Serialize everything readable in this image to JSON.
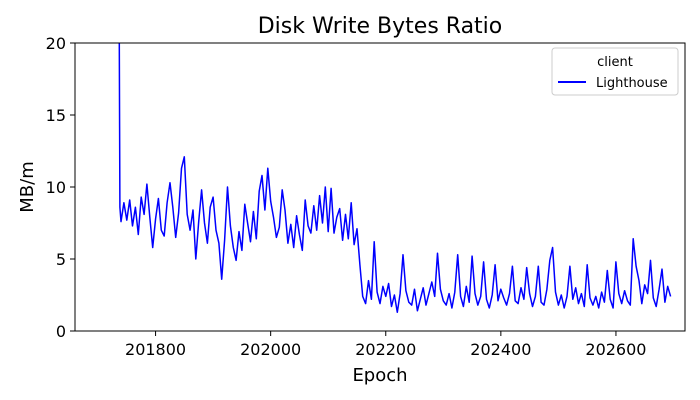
{
  "chart_data": {
    "type": "line",
    "title": "Disk Write Bytes Ratio",
    "xlabel": "Epoch",
    "ylabel": "MB/m",
    "xlim": [
      201660,
      202720
    ],
    "ylim": [
      0,
      20
    ],
    "xticks": [
      201800,
      202000,
      202200,
      202400,
      202600
    ],
    "yticks": [
      0,
      5,
      10,
      15,
      20
    ],
    "grid": false,
    "legend": {
      "title": "client",
      "placement": "top-right"
    },
    "series": [
      {
        "name": "Lighthouse",
        "color": "#0000ff",
        "points": [
          [
            201737,
            20.0
          ],
          [
            201738,
            8.6
          ],
          [
            201740,
            7.6
          ],
          [
            201745,
            8.9
          ],
          [
            201750,
            7.7
          ],
          [
            201755,
            9.1
          ],
          [
            201760,
            7.3
          ],
          [
            201765,
            8.6
          ],
          [
            201770,
            6.7
          ],
          [
            201775,
            9.3
          ],
          [
            201780,
            8.1
          ],
          [
            201785,
            10.2
          ],
          [
            201790,
            7.9
          ],
          [
            201795,
            5.8
          ],
          [
            201800,
            7.8
          ],
          [
            201805,
            9.2
          ],
          [
            201810,
            7.0
          ],
          [
            201815,
            6.6
          ],
          [
            201820,
            8.9
          ],
          [
            201825,
            10.3
          ],
          [
            201830,
            8.6
          ],
          [
            201835,
            6.5
          ],
          [
            201840,
            8.2
          ],
          [
            201845,
            11.3
          ],
          [
            201850,
            12.1
          ],
          [
            201855,
            8.1
          ],
          [
            201860,
            7.0
          ],
          [
            201865,
            8.4
          ],
          [
            201870,
            5.0
          ],
          [
            201875,
            7.6
          ],
          [
            201880,
            9.8
          ],
          [
            201885,
            7.5
          ],
          [
            201890,
            6.1
          ],
          [
            201895,
            8.6
          ],
          [
            201900,
            9.3
          ],
          [
            201905,
            7.0
          ],
          [
            201910,
            6.1
          ],
          [
            201915,
            3.6
          ],
          [
            201920,
            6.3
          ],
          [
            201925,
            10.0
          ],
          [
            201930,
            7.3
          ],
          [
            201935,
            5.8
          ],
          [
            201940,
            4.9
          ],
          [
            201945,
            6.9
          ],
          [
            201950,
            5.6
          ],
          [
            201955,
            8.8
          ],
          [
            201960,
            7.5
          ],
          [
            201965,
            6.2
          ],
          [
            201970,
            8.3
          ],
          [
            201975,
            6.4
          ],
          [
            201980,
            9.7
          ],
          [
            201985,
            10.8
          ],
          [
            201990,
            8.4
          ],
          [
            201995,
            11.3
          ],
          [
            202000,
            9.0
          ],
          [
            202005,
            7.9
          ],
          [
            202010,
            6.5
          ],
          [
            202015,
            7.2
          ],
          [
            202020,
            9.8
          ],
          [
            202025,
            8.4
          ],
          [
            202030,
            6.1
          ],
          [
            202035,
            7.4
          ],
          [
            202040,
            5.8
          ],
          [
            202045,
            8.0
          ],
          [
            202050,
            6.7
          ],
          [
            202055,
            5.6
          ],
          [
            202060,
            9.1
          ],
          [
            202065,
            7.3
          ],
          [
            202070,
            6.8
          ],
          [
            202075,
            8.7
          ],
          [
            202080,
            7.0
          ],
          [
            202085,
            9.4
          ],
          [
            202090,
            7.5
          ],
          [
            202095,
            10.0
          ],
          [
            202100,
            6.9
          ],
          [
            202105,
            9.9
          ],
          [
            202110,
            6.8
          ],
          [
            202115,
            7.9
          ],
          [
            202120,
            8.5
          ],
          [
            202125,
            6.3
          ],
          [
            202130,
            8.1
          ],
          [
            202135,
            6.4
          ],
          [
            202140,
            8.9
          ],
          [
            202145,
            6.0
          ],
          [
            202150,
            7.1
          ],
          [
            202155,
            4.6
          ],
          [
            202160,
            2.4
          ],
          [
            202165,
            1.9
          ],
          [
            202170,
            3.5
          ],
          [
            202175,
            2.2
          ],
          [
            202180,
            6.2
          ],
          [
            202185,
            2.7
          ],
          [
            202190,
            1.9
          ],
          [
            202195,
            3.1
          ],
          [
            202200,
            2.4
          ],
          [
            202205,
            3.3
          ],
          [
            202210,
            1.7
          ],
          [
            202215,
            2.5
          ],
          [
            202220,
            1.3
          ],
          [
            202225,
            2.6
          ],
          [
            202230,
            5.3
          ],
          [
            202235,
            2.8
          ],
          [
            202240,
            2.0
          ],
          [
            202245,
            1.8
          ],
          [
            202250,
            2.9
          ],
          [
            202255,
            1.4
          ],
          [
            202260,
            2.2
          ],
          [
            202265,
            3.0
          ],
          [
            202270,
            1.8
          ],
          [
            202275,
            2.6
          ],
          [
            202280,
            3.4
          ],
          [
            202285,
            2.4
          ],
          [
            202290,
            5.4
          ],
          [
            202295,
            2.9
          ],
          [
            202300,
            2.1
          ],
          [
            202305,
            1.8
          ],
          [
            202310,
            2.6
          ],
          [
            202315,
            1.6
          ],
          [
            202320,
            2.7
          ],
          [
            202325,
            5.3
          ],
          [
            202330,
            2.4
          ],
          [
            202335,
            1.7
          ],
          [
            202340,
            3.1
          ],
          [
            202345,
            2.0
          ],
          [
            202350,
            5.2
          ],
          [
            202355,
            2.6
          ],
          [
            202360,
            1.8
          ],
          [
            202365,
            2.4
          ],
          [
            202370,
            4.8
          ],
          [
            202375,
            2.2
          ],
          [
            202380,
            1.6
          ],
          [
            202385,
            2.5
          ],
          [
            202390,
            4.6
          ],
          [
            202395,
            2.1
          ],
          [
            202400,
            2.9
          ],
          [
            202405,
            2.3
          ],
          [
            202410,
            1.8
          ],
          [
            202415,
            2.6
          ],
          [
            202420,
            4.5
          ],
          [
            202425,
            2.1
          ],
          [
            202430,
            1.9
          ],
          [
            202435,
            3.0
          ],
          [
            202440,
            2.2
          ],
          [
            202445,
            4.4
          ],
          [
            202450,
            2.6
          ],
          [
            202455,
            1.7
          ],
          [
            202460,
            2.4
          ],
          [
            202465,
            4.5
          ],
          [
            202470,
            2.0
          ],
          [
            202475,
            1.8
          ],
          [
            202480,
            2.9
          ],
          [
            202485,
            4.9
          ],
          [
            202490,
            5.8
          ],
          [
            202495,
            2.7
          ],
          [
            202500,
            1.8
          ],
          [
            202505,
            2.5
          ],
          [
            202510,
            1.6
          ],
          [
            202515,
            2.4
          ],
          [
            202520,
            4.5
          ],
          [
            202525,
            2.2
          ],
          [
            202530,
            3.0
          ],
          [
            202535,
            1.9
          ],
          [
            202540,
            2.6
          ],
          [
            202545,
            1.7
          ],
          [
            202550,
            4.6
          ],
          [
            202555,
            2.3
          ],
          [
            202560,
            1.8
          ],
          [
            202565,
            2.4
          ],
          [
            202570,
            1.6
          ],
          [
            202575,
            2.7
          ],
          [
            202580,
            2.0
          ],
          [
            202585,
            4.2
          ],
          [
            202590,
            2.2
          ],
          [
            202595,
            1.6
          ],
          [
            202600,
            4.8
          ],
          [
            202605,
            2.6
          ],
          [
            202610,
            1.9
          ],
          [
            202615,
            2.8
          ],
          [
            202620,
            2.1
          ],
          [
            202625,
            1.8
          ],
          [
            202630,
            6.4
          ],
          [
            202635,
            4.5
          ],
          [
            202640,
            3.5
          ],
          [
            202645,
            1.9
          ],
          [
            202650,
            3.2
          ],
          [
            202655,
            2.6
          ],
          [
            202660,
            4.9
          ],
          [
            202665,
            2.3
          ],
          [
            202670,
            1.7
          ],
          [
            202675,
            2.9
          ],
          [
            202680,
            4.3
          ],
          [
            202685,
            2.0
          ],
          [
            202690,
            3.1
          ],
          [
            202695,
            2.4
          ]
        ]
      }
    ]
  }
}
